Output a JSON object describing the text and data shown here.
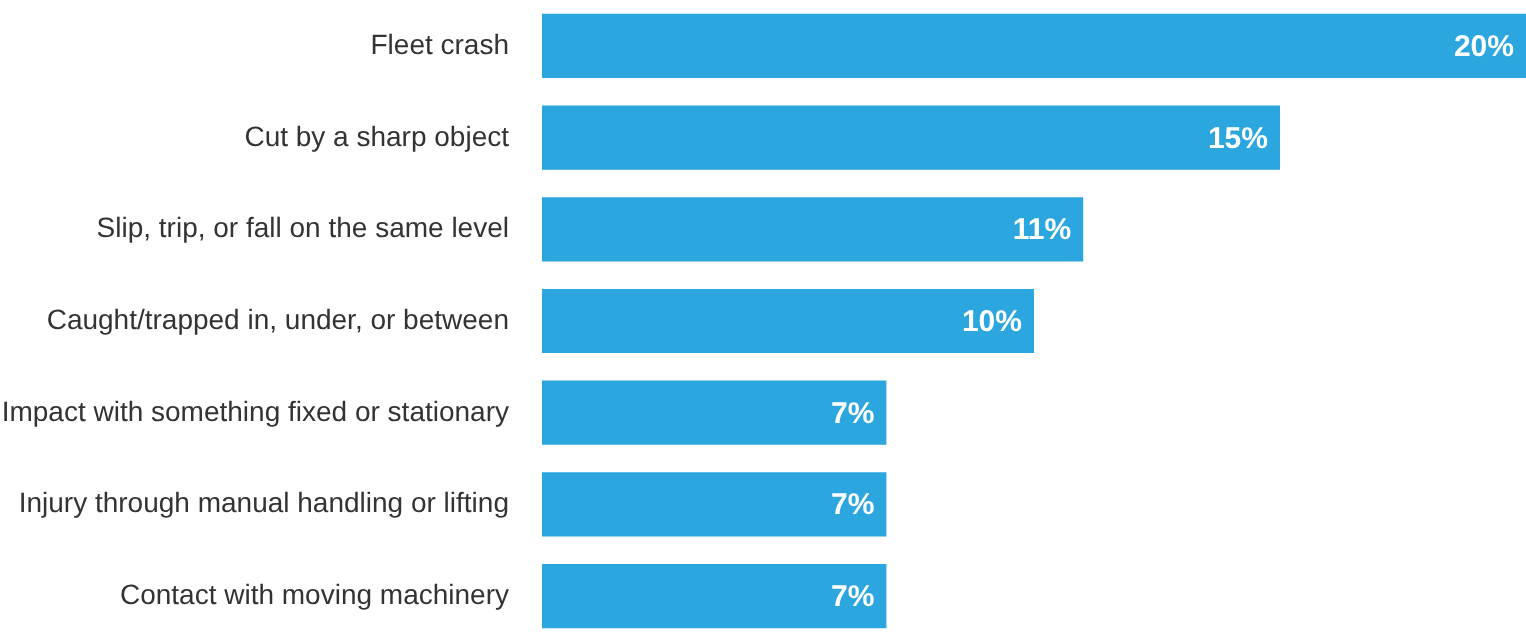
{
  "chart_data": {
    "type": "bar",
    "orientation": "horizontal",
    "categories": [
      "Fleet crash",
      "Cut by a sharp object",
      "Slip, trip, or fall on the same level",
      "Caught/trapped in, under, or between",
      "Impact with something fixed or stationary",
      "Injury through manual handling or lifting",
      "Contact with moving machinery"
    ],
    "values": [
      20,
      15,
      11,
      10,
      7,
      7,
      7
    ],
    "value_labels": [
      "20%",
      "15%",
      "11%",
      "10%",
      "7%",
      "7%",
      "7%"
    ],
    "color": "#2ba6de",
    "xlim": [
      0,
      20
    ],
    "tick_labels": "y"
  }
}
